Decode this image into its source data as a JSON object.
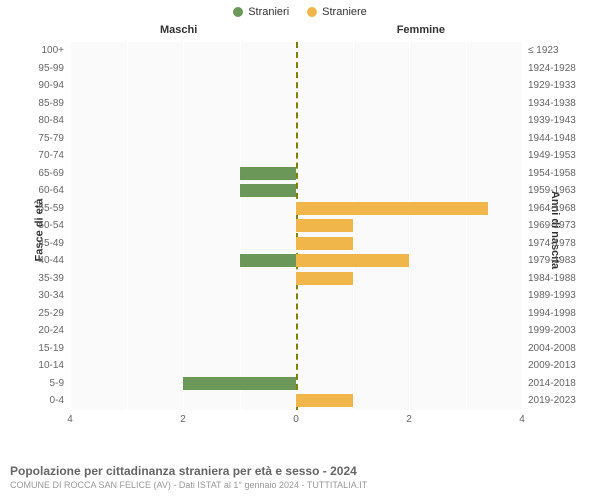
{
  "legend": {
    "male": {
      "label": "Stranieri",
      "color": "#6b9758"
    },
    "female": {
      "label": "Straniere",
      "color": "#f0b64a"
    }
  },
  "panels": {
    "left": "Maschi",
    "right": "Femmine"
  },
  "yaxis": {
    "left_label": "Fasce di età",
    "right_label": "Anni di nascita"
  },
  "xaxis": {
    "max": 4,
    "ticks": [
      4,
      2,
      0,
      2,
      4
    ]
  },
  "plot": {
    "background_color": "#fafafa",
    "grid_color": "#ffffff",
    "center_line_color": "#808000",
    "row_height": 17.5
  },
  "data": [
    {
      "age": "100+",
      "birth": "≤ 1923",
      "m": 0,
      "f": 0
    },
    {
      "age": "95-99",
      "birth": "1924-1928",
      "m": 0,
      "f": 0
    },
    {
      "age": "90-94",
      "birth": "1929-1933",
      "m": 0,
      "f": 0
    },
    {
      "age": "85-89",
      "birth": "1934-1938",
      "m": 0,
      "f": 0
    },
    {
      "age": "80-84",
      "birth": "1939-1943",
      "m": 0,
      "f": 0
    },
    {
      "age": "75-79",
      "birth": "1944-1948",
      "m": 0,
      "f": 0
    },
    {
      "age": "70-74",
      "birth": "1949-1953",
      "m": 0,
      "f": 0
    },
    {
      "age": "65-69",
      "birth": "1954-1958",
      "m": 1,
      "f": 0
    },
    {
      "age": "60-64",
      "birth": "1959-1963",
      "m": 1,
      "f": 0
    },
    {
      "age": "55-59",
      "birth": "1964-1968",
      "m": 0,
      "f": 3.4
    },
    {
      "age": "50-54",
      "birth": "1969-1973",
      "m": 0,
      "f": 1
    },
    {
      "age": "45-49",
      "birth": "1974-1978",
      "m": 0,
      "f": 1
    },
    {
      "age": "40-44",
      "birth": "1979-1983",
      "m": 1,
      "f": 2
    },
    {
      "age": "35-39",
      "birth": "1984-1988",
      "m": 0,
      "f": 1
    },
    {
      "age": "30-34",
      "birth": "1989-1993",
      "m": 0,
      "f": 0
    },
    {
      "age": "25-29",
      "birth": "1994-1998",
      "m": 0,
      "f": 0
    },
    {
      "age": "20-24",
      "birth": "1999-2003",
      "m": 0,
      "f": 0
    },
    {
      "age": "15-19",
      "birth": "2004-2008",
      "m": 0,
      "f": 0
    },
    {
      "age": "10-14",
      "birth": "2009-2013",
      "m": 0,
      "f": 0
    },
    {
      "age": "5-9",
      "birth": "2014-2018",
      "m": 2,
      "f": 0
    },
    {
      "age": "0-4",
      "birth": "2019-2023",
      "m": 0,
      "f": 1
    }
  ],
  "footer": {
    "title": "Popolazione per cittadinanza straniera per età e sesso - 2024",
    "subtitle": "COMUNE DI ROCCA SAN FELICE (AV) - Dati ISTAT al 1° gennaio 2024 - TUTTITALIA.IT"
  }
}
